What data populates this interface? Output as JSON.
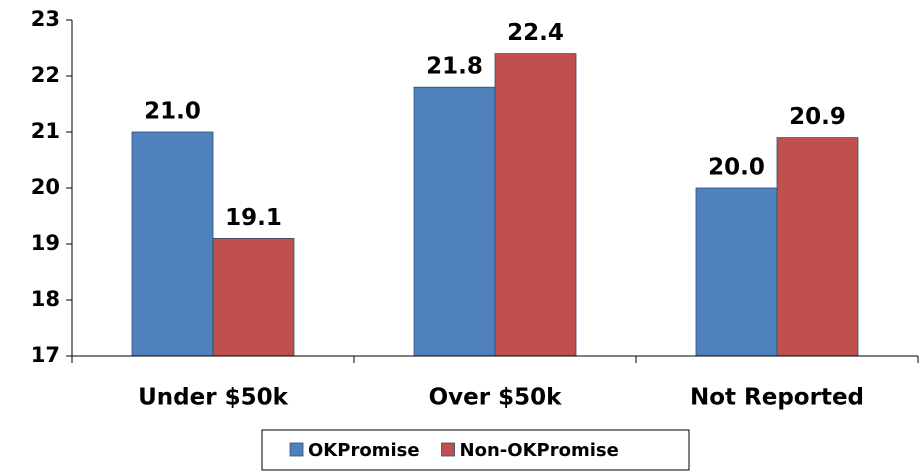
{
  "chart_data": {
    "type": "bar",
    "categories": [
      "Under $50k",
      "Over $50k",
      "Not Reported"
    ],
    "series": [
      {
        "name": "OKPromise",
        "color": "#4f81bd",
        "values": [
          21.0,
          21.8,
          20.0
        ],
        "value_labels": [
          "21.0",
          "21.8",
          "20.0"
        ]
      },
      {
        "name": "Non-OKPromise",
        "color": "#c0504d",
        "values": [
          19.1,
          22.4,
          20.9
        ],
        "value_labels": [
          "19.1",
          "22.4",
          "20.9"
        ]
      }
    ],
    "ylim": [
      17,
      23
    ],
    "yticks": [
      17,
      18,
      19,
      20,
      21,
      22,
      23
    ],
    "grid": false,
    "legend": "bottom"
  }
}
